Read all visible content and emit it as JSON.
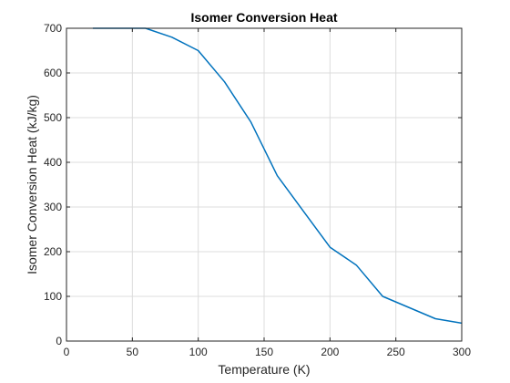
{
  "chart_data": {
    "type": "line",
    "title": "Isomer Conversion Heat",
    "xlabel": "Temperature (K)",
    "ylabel": "Isomer Conversion Heat (kJ/kg)",
    "xlim": [
      0,
      300
    ],
    "ylim": [
      0,
      700
    ],
    "xticks": [
      0,
      50,
      100,
      150,
      200,
      250,
      300
    ],
    "yticks": [
      0,
      100,
      200,
      300,
      400,
      500,
      600,
      700
    ],
    "grid": true,
    "series": [
      {
        "color": "#0072BD",
        "x": [
          20,
          40,
          60,
          80,
          100,
          120,
          140,
          160,
          180,
          200,
          220,
          240,
          260,
          280,
          300
        ],
        "y": [
          700,
          700,
          700,
          680,
          650,
          580,
          490,
          370,
          290,
          210,
          170,
          100,
          75,
          50,
          40
        ]
      }
    ]
  }
}
